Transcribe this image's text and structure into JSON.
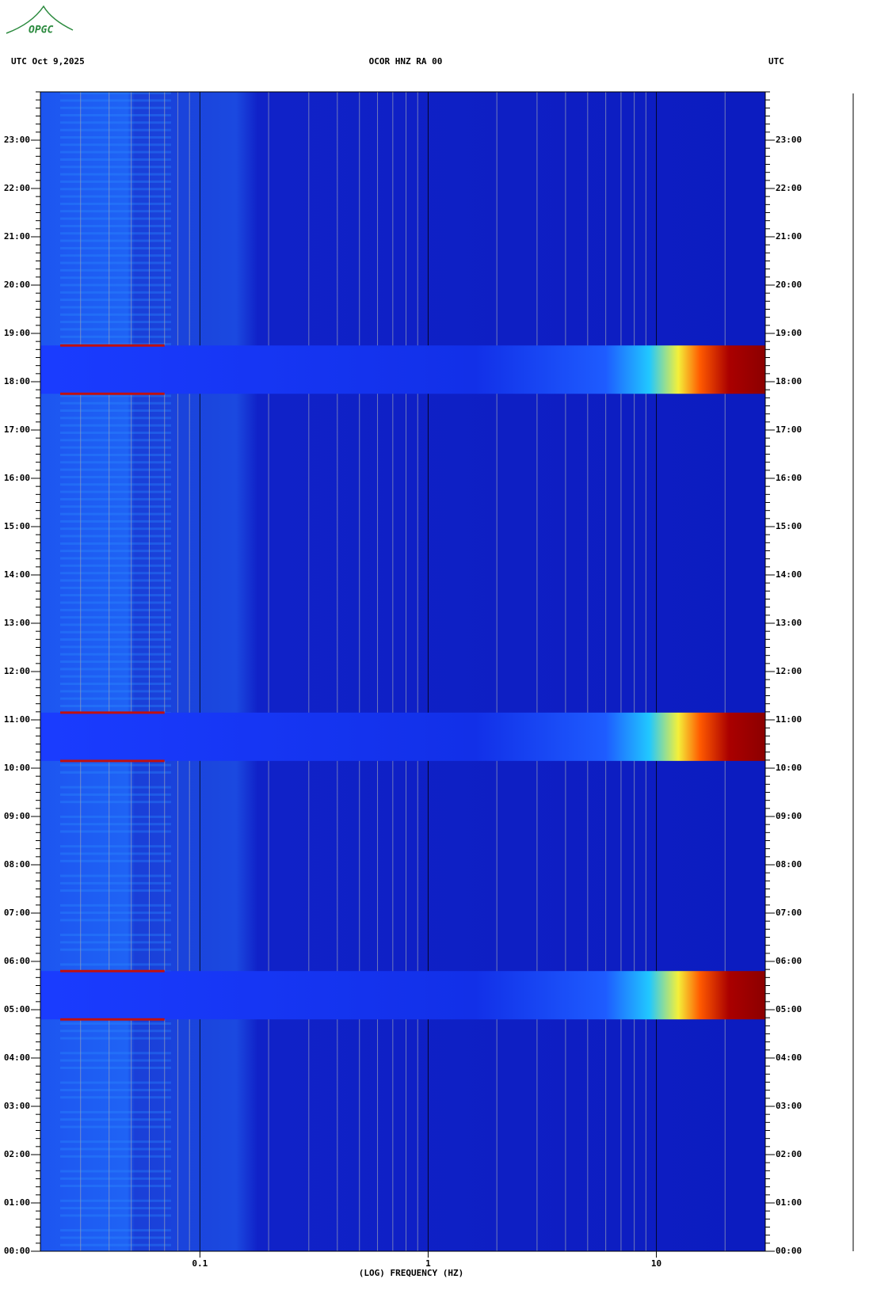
{
  "logo": "OPGC",
  "chart_data": {
    "type": "spectrogram",
    "title": "OCOR HNZ RA 00",
    "header_left": "UTC  Oct 9,2025",
    "header_right": "UTC",
    "xlabel": "(LOG) FREQUENCY (HZ)",
    "xscale": "log",
    "xlim": [
      0.02,
      30
    ],
    "xticks": [
      {
        "value": 0.1,
        "label": "0.1"
      },
      1,
      10
    ],
    "ylim": [
      0,
      24
    ],
    "yticks": [
      {
        "value": 0,
        "label": "00:00"
      },
      {
        "value": 1,
        "label": "01:00"
      },
      {
        "value": 2,
        "label": "02:00"
      },
      {
        "value": 3,
        "label": "03:00"
      },
      {
        "value": 4,
        "label": "04:00"
      },
      {
        "value": 5,
        "label": "05:00"
      },
      {
        "value": 6,
        "label": "06:00"
      },
      {
        "value": 7,
        "label": "07:00"
      },
      {
        "value": 8,
        "label": "08:00"
      },
      {
        "value": 9,
        "label": "09:00"
      },
      {
        "value": 10,
        "label": "10:00"
      },
      {
        "value": 11,
        "label": "11:00"
      },
      {
        "value": 12,
        "label": "12:00"
      },
      {
        "value": 13,
        "label": "13:00"
      },
      {
        "value": 14,
        "label": "14:00"
      },
      {
        "value": 15,
        "label": "15:00"
      },
      {
        "value": 16,
        "label": "16:00"
      },
      {
        "value": 17,
        "label": "17:00"
      },
      {
        "value": 18,
        "label": "18:00"
      },
      {
        "value": 19,
        "label": "19:00"
      },
      {
        "value": 20,
        "label": "20:00"
      },
      {
        "value": 21,
        "label": "21:00"
      },
      {
        "value": 22,
        "label": "22:00"
      },
      {
        "value": 23,
        "label": "23:00"
      }
    ],
    "bursts": [
      [
        4.8,
        5.8
      ],
      [
        10.15,
        11.15
      ],
      [
        17.75,
        18.75
      ]
    ],
    "grid": true
  }
}
